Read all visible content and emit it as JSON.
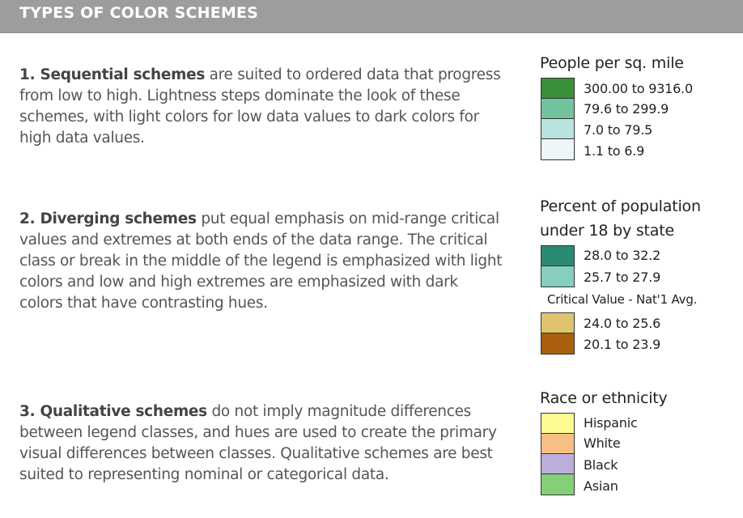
{
  "header": {
    "title": "TYPES OF COLOR SCHEMES"
  },
  "sections": [
    {
      "bold": "1. Sequential schemes",
      "text": " are suited to ordered data that progress from low to high. Lightness steps dominate the look of these schemes, with light colors for low data values to dark colors for high data values."
    },
    {
      "bold": "2. Diverging schemes",
      "text": " put equal emphasis on mid-range critical values and extremes at both ends of the data range. The critical class or break in the middle of the legend is emphasized with light colors and low and high extremes are emphasized with dark colors that have contrasting hues."
    },
    {
      "bold": "3. Qualitative schemes",
      "text": " do not imply magnitude differences between legend classes, and hues are used to create the primary visual differences between classes. Qualitative schemes are best suited to representing nominal or categorical data."
    }
  ],
  "legends": {
    "sequential": {
      "title": "People per sq. mile",
      "items": [
        {
          "label": "300.00 to 9316.0",
          "color": "#3a8f3a"
        },
        {
          "label": "79.6 to 299.9",
          "color": "#72c29f"
        },
        {
          "label": "7.0 to 79.5",
          "color": "#b9e3de"
        },
        {
          "label": "1.1 to 6.9",
          "color": "#eef7f7"
        }
      ]
    },
    "diverging": {
      "title_line1": "Percent of population",
      "title_line2": "under 18 by state",
      "high_items": [
        {
          "label": "28.0 to 32.2",
          "color": "#2a8a73"
        },
        {
          "label": "25.7 to 27.9",
          "color": "#86cfbf"
        }
      ],
      "critical": "Critical Value - Nat'1 Avg.",
      "low_items": [
        {
          "label": "24.0 to 25.6",
          "color": "#dfc36f"
        },
        {
          "label": "20.1 to 23.9",
          "color": "#a95f0c"
        }
      ]
    },
    "qualitative": {
      "title": "Race or ethnicity",
      "items": [
        {
          "label": "Hispanic",
          "color": "#fbfb8f"
        },
        {
          "label": "White",
          "color": "#f8bf85"
        },
        {
          "label": "Black",
          "color": "#bcaedb"
        },
        {
          "label": "Asian",
          "color": "#86cf79"
        }
      ]
    }
  }
}
